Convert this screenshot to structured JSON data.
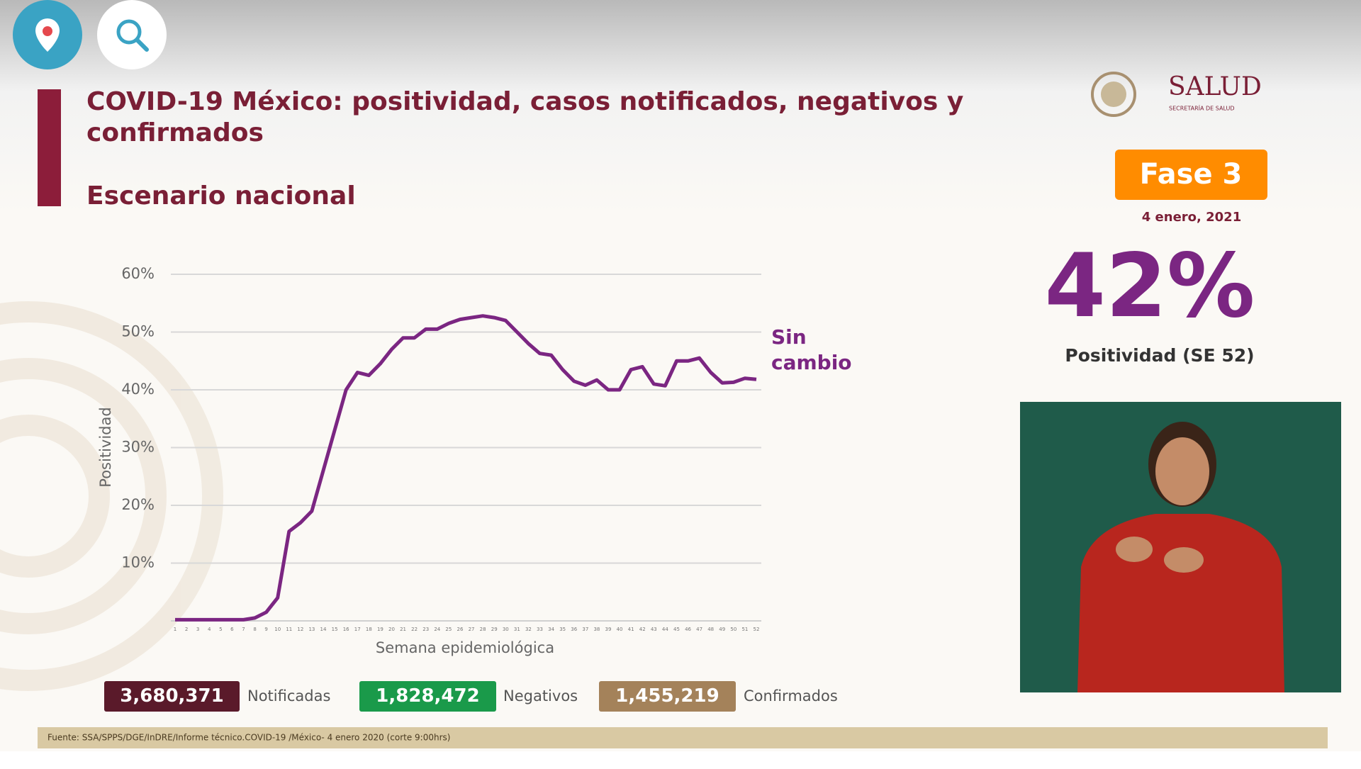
{
  "header": {
    "title": "COVID-19 México: positividad, casos notificados, negativos y confirmados",
    "subtitle": "Escenario nacional"
  },
  "logo": {
    "name": "SALUD",
    "subtitle": "SECRETARÍA DE SALUD"
  },
  "phase": {
    "label": "Fase 3",
    "date": "4 enero, 2021"
  },
  "headline": {
    "value": "42%",
    "label": "Positividad (SE 52)"
  },
  "chart_data": {
    "type": "line",
    "x": [
      1,
      2,
      3,
      4,
      5,
      6,
      7,
      8,
      9,
      10,
      11,
      12,
      13,
      14,
      15,
      16,
      17,
      18,
      19,
      20,
      21,
      22,
      23,
      24,
      25,
      26,
      27,
      28,
      29,
      30,
      31,
      32,
      33,
      34,
      35,
      36,
      37,
      38,
      39,
      40,
      41,
      42,
      43,
      44,
      45,
      46,
      47,
      48,
      49,
      50,
      51,
      52
    ],
    "values": [
      0.2,
      0.2,
      0.2,
      0.2,
      0.2,
      0.2,
      0.2,
      0.5,
      1.5,
      4,
      15.5,
      17,
      19,
      26,
      33,
      40,
      43,
      42.5,
      44.5,
      47,
      49,
      49,
      50.5,
      50.5,
      51.5,
      52.2,
      52.5,
      52.8,
      52.5,
      52,
      50,
      48,
      46.3,
      46,
      43.5,
      41.5,
      40.8,
      41.7,
      40,
      40,
      43.5,
      44,
      41,
      40.7,
      45,
      45,
      45.5,
      43,
      41.2,
      41.3,
      42,
      41.8
    ],
    "color": "#7b2682",
    "xlim": [
      1,
      52
    ],
    "xticks": [
      1,
      2,
      3,
      4,
      5,
      6,
      7,
      8,
      9,
      10,
      11,
      12,
      13,
      14,
      15,
      16,
      17,
      18,
      19,
      20,
      21,
      22,
      23,
      24,
      25,
      26,
      27,
      28,
      29,
      30,
      31,
      32,
      33,
      34,
      35,
      36,
      37,
      38,
      39,
      40,
      41,
      42,
      43,
      44,
      45,
      46,
      47,
      48,
      49,
      50,
      51,
      52
    ],
    "ylim": [
      0,
      60
    ],
    "yticks": [
      {
        "value": 10,
        "label": "10%"
      },
      {
        "value": 20,
        "label": "20%"
      },
      {
        "value": 30,
        "label": "30%"
      },
      {
        "value": 40,
        "label": "40%"
      },
      {
        "value": 50,
        "label": "50%"
      },
      {
        "value": 60,
        "label": "60%"
      }
    ],
    "xlabel": "Semana epidemiológica",
    "ylabel": "Positividad",
    "annotation": "Sin cambio",
    "grid": true
  },
  "totals": [
    {
      "value": "3,680,371",
      "label": "Notificadas"
    },
    {
      "value": "1,828,472",
      "label": "Negativos"
    },
    {
      "value": "1,455,219",
      "label": "Confirmados"
    }
  ],
  "source": "Fuente: SSA/SPPS/DGE/InDRE/Informe técnico.COVID-19 /México- 4 enero 2020 (corte 9:00hrs)"
}
